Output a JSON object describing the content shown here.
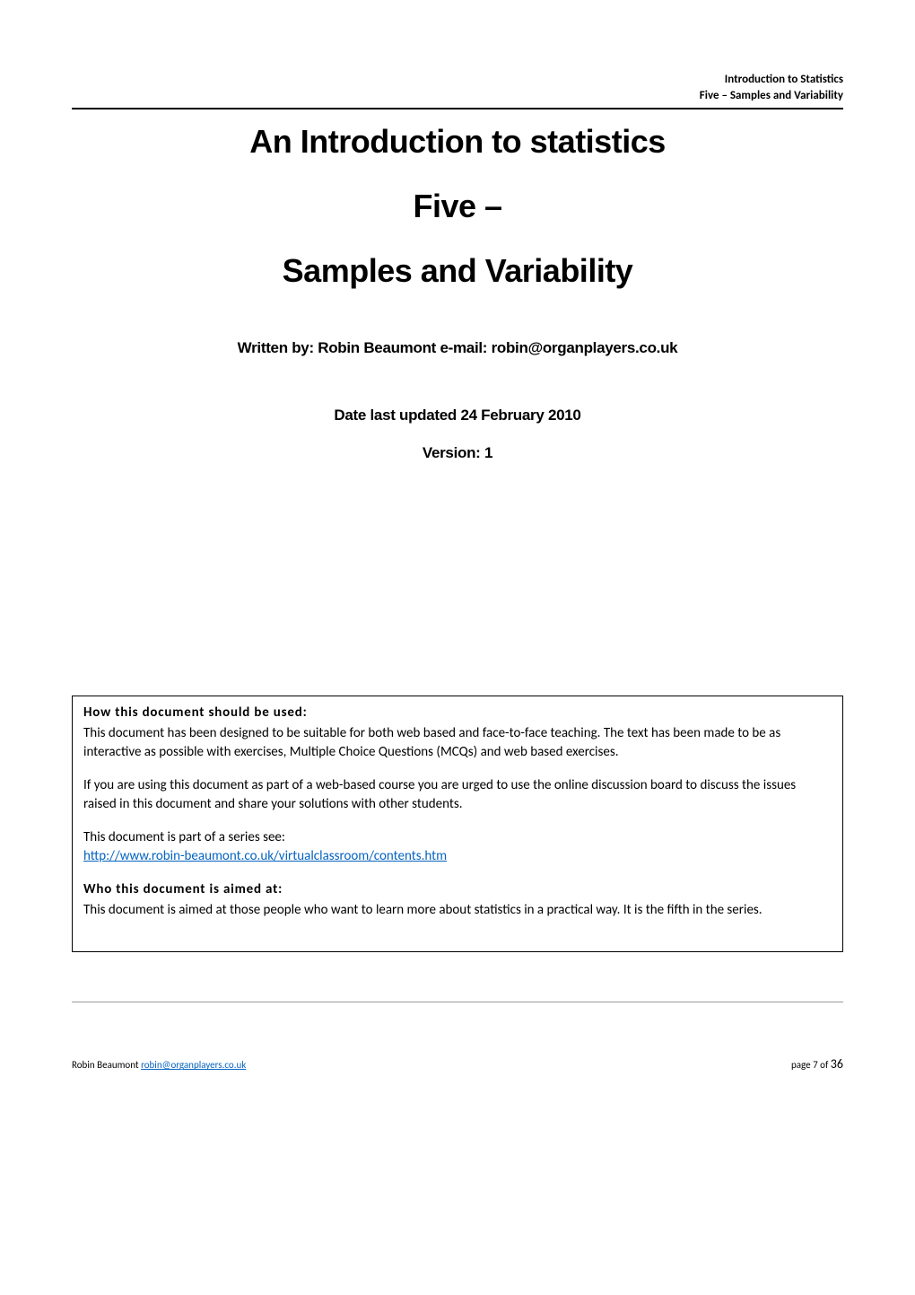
{
  "header": {
    "line1": "Introduction to Statistics",
    "line2": "Five – Samples and Variability"
  },
  "titles": {
    "main": "An Introduction to statistics",
    "sub1": "Five –",
    "sub2": "Samples and Variability"
  },
  "meta": {
    "written_by": "Written by: Robin Beaumont e-mail: robin@organplayers.co.uk",
    "date_updated": "Date last updated 24 February 2010",
    "version": "Version: 1"
  },
  "info_box": {
    "heading1": "How this document should be used:",
    "para1": "This document has been designed to be suitable for both web based and face-to-face teaching. The text has been made to be as interactive as possible with exercises, Multiple Choice Questions (MCQs) and web based exercises.",
    "para2": "If you are using this document as part of a web-based course you are urged to use the online discussion board to discuss the issues raised in this document and share your solutions with other students.",
    "para3": "This document is part of a series see:",
    "link1": "http://www.robin-beaumont.co.uk/virtualclassroom/contents.htm",
    "heading2": "Who this document is aimed at:",
    "para4": "This document is aimed at those people who want to learn more about statistics in a practical way. It is the fifth in the series."
  },
  "footer": {
    "author_name": "Robin Beaumont ",
    "author_email": "robin@organplayers.co.uk",
    "page_label": "page 7 of ",
    "page_total": "36"
  }
}
